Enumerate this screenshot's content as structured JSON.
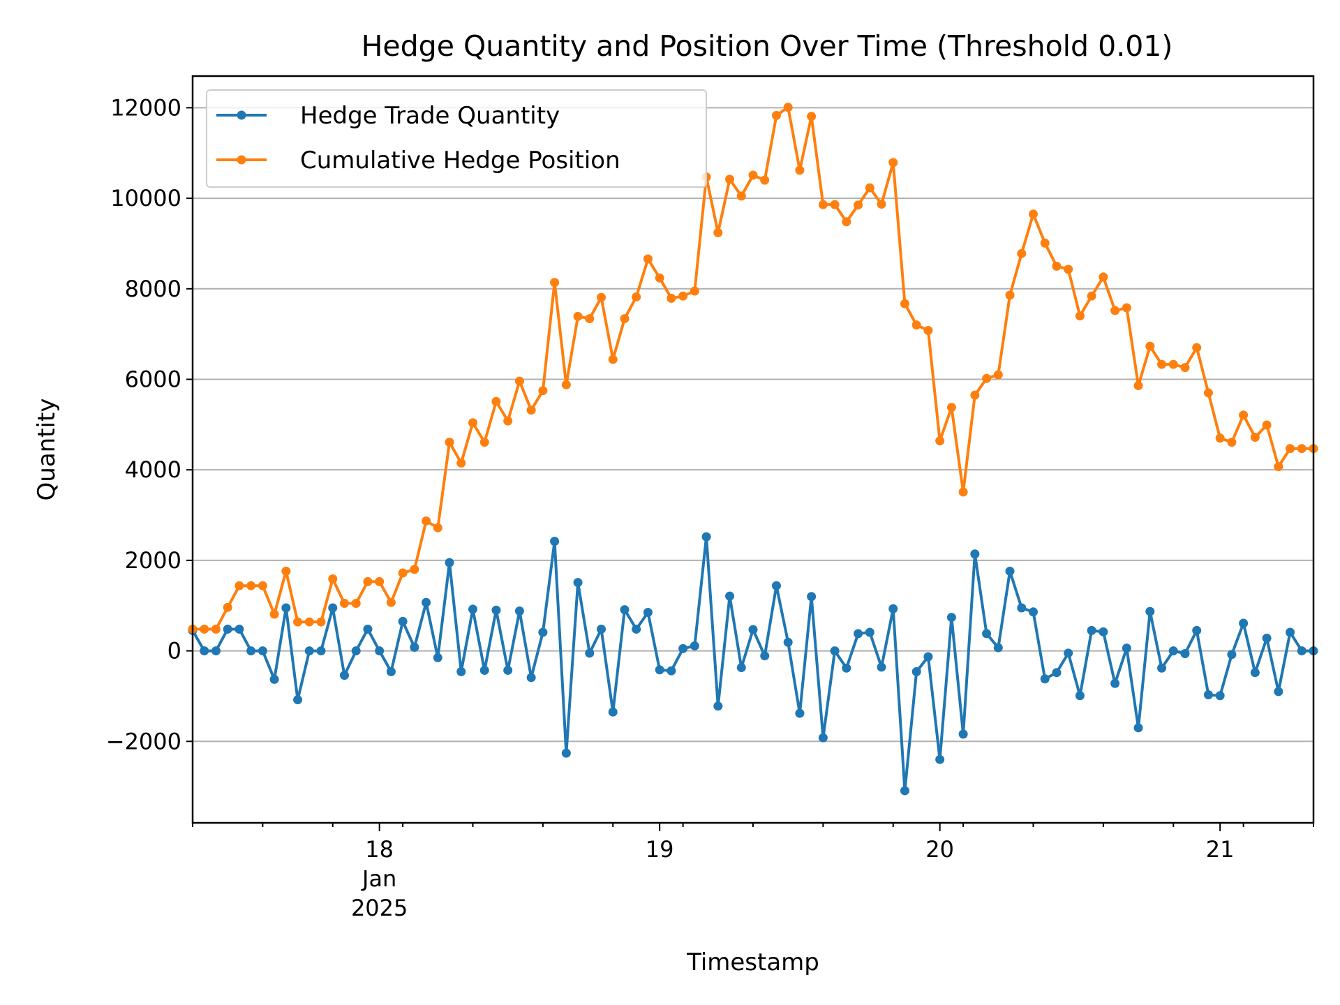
{
  "chart_data": {
    "type": "line",
    "title": "Hedge Quantity and Position Over Time (Threshold 0.01)",
    "xlabel": "Timestamp",
    "ylabel": "Quantity",
    "x_axis": {
      "type": "datetime",
      "start": "2025-01-17T08:00",
      "end": "2025-01-21T08:00",
      "ticks": [
        {
          "value": "2025-01-18T00:00",
          "lines": [
            "18",
            "Jan",
            "2025"
          ]
        },
        {
          "value": "2025-01-19T00:00",
          "lines": [
            "19"
          ]
        },
        {
          "value": "2025-01-20T00:00",
          "lines": [
            "20"
          ]
        },
        {
          "value": "2025-01-21T00:00",
          "lines": [
            "21"
          ]
        }
      ]
    },
    "y_axis": {
      "ylim": [
        -3800,
        12700
      ],
      "ticks": [
        -2000,
        0,
        2000,
        4000,
        6000,
        8000,
        10000,
        12000
      ],
      "tick_labels": [
        "−2000",
        "0",
        "2000",
        "4000",
        "6000",
        "8000",
        "10000",
        "12000"
      ],
      "grid": "horizontal"
    },
    "legend": {
      "placement": "top-left"
    },
    "series": [
      {
        "name": "Hedge Trade Quantity",
        "color": "#1f77b4",
        "values": [
          450,
          0,
          0,
          480,
          480,
          0,
          0,
          -630,
          950,
          -1080,
          0,
          0,
          950,
          -540,
          0,
          480,
          0,
          -460,
          650,
          80,
          1070,
          -150,
          1950,
          -460,
          920,
          -430,
          900,
          -430,
          880,
          -590,
          410,
          2420,
          -2260,
          1510,
          -50,
          480,
          -1350,
          910,
          480,
          850,
          -420,
          -440,
          50,
          110,
          2520,
          -1220,
          1210,
          -370,
          470,
          -110,
          1440,
          190,
          -1380,
          1200,
          -1920,
          0,
          -380,
          380,
          410,
          -360,
          930,
          -3090,
          -460,
          -130,
          -2400,
          740,
          -1840,
          2140,
          380,
          70,
          1760,
          950,
          860,
          -620,
          -480,
          -50,
          -990,
          450,
          420,
          -720,
          60,
          -1700,
          870,
          -380,
          0,
          -60,
          450,
          -970,
          -990,
          -80,
          610,
          -480,
          280,
          -900,
          410,
          0,
          0
        ]
      },
      {
        "name": "Cumulative Hedge Position",
        "color": "#ff7f0e",
        "values": [
          480,
          480,
          480,
          960,
          1440,
          1440,
          1440,
          810,
          1760,
          640,
          640,
          640,
          1590,
          1050,
          1050,
          1530,
          1530,
          1070,
          1720,
          1800,
          2870,
          2720,
          4610,
          4150,
          5040,
          4610,
          5510,
          5080,
          5960,
          5320,
          5750,
          8140,
          5880,
          7390,
          7340,
          7810,
          6440,
          7340,
          7820,
          8660,
          8240,
          7790,
          7840,
          7950,
          10470,
          9240,
          10420,
          10050,
          10510,
          10400,
          11830,
          12010,
          10620,
          11810,
          9860,
          9860,
          9480,
          9850,
          10230,
          9870,
          10790,
          7670,
          7200,
          7080,
          4640,
          5380,
          3510,
          5650,
          6020,
          6100,
          7860,
          8780,
          9650,
          9010,
          8500,
          8430,
          7400,
          7840,
          8260,
          7520,
          7580,
          5860,
          6730,
          6330,
          6330,
          6260,
          6700,
          5700,
          4700,
          4610,
          5210,
          4720,
          4990,
          4070,
          4470,
          4470,
          4470
        ]
      }
    ]
  }
}
